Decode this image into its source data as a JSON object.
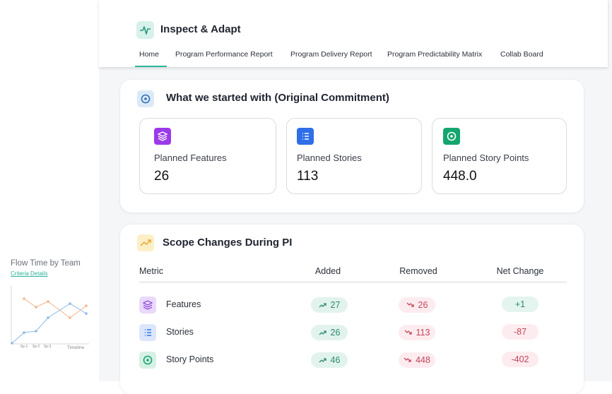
{
  "header": {
    "title": "Inspect & Adapt",
    "tabs": [
      "Home",
      "Program Performance Report",
      "Program Delivery Report",
      "Program Predictability Matrix",
      "Collab Board"
    ]
  },
  "side_chart": {
    "title": "Flow Time by Team",
    "link": "Criteria Details",
    "x_label": "Timeline",
    "x_ticks": [
      "Sp-1",
      "Sp-2",
      "Sp-3"
    ]
  },
  "commitment": {
    "title": "What we started with (Original Commitment)",
    "cards": [
      {
        "label": "Planned Features",
        "value": 26
      },
      {
        "label": "Planned Stories",
        "value": 113
      },
      {
        "label": "Planned Story Points",
        "value": "448.0"
      }
    ]
  },
  "scope": {
    "title": "Scope Changes During PI",
    "columns": [
      "Metric",
      "Added",
      "Removed",
      "Net Change"
    ],
    "rows": [
      {
        "metric": "Features",
        "added": 27,
        "removed": 26,
        "net": "+1"
      },
      {
        "metric": "Stories",
        "added": 26,
        "removed": 113,
        "net": -87
      },
      {
        "metric": "Story Points",
        "added": 46,
        "removed": 448,
        "net": -402
      }
    ]
  }
}
